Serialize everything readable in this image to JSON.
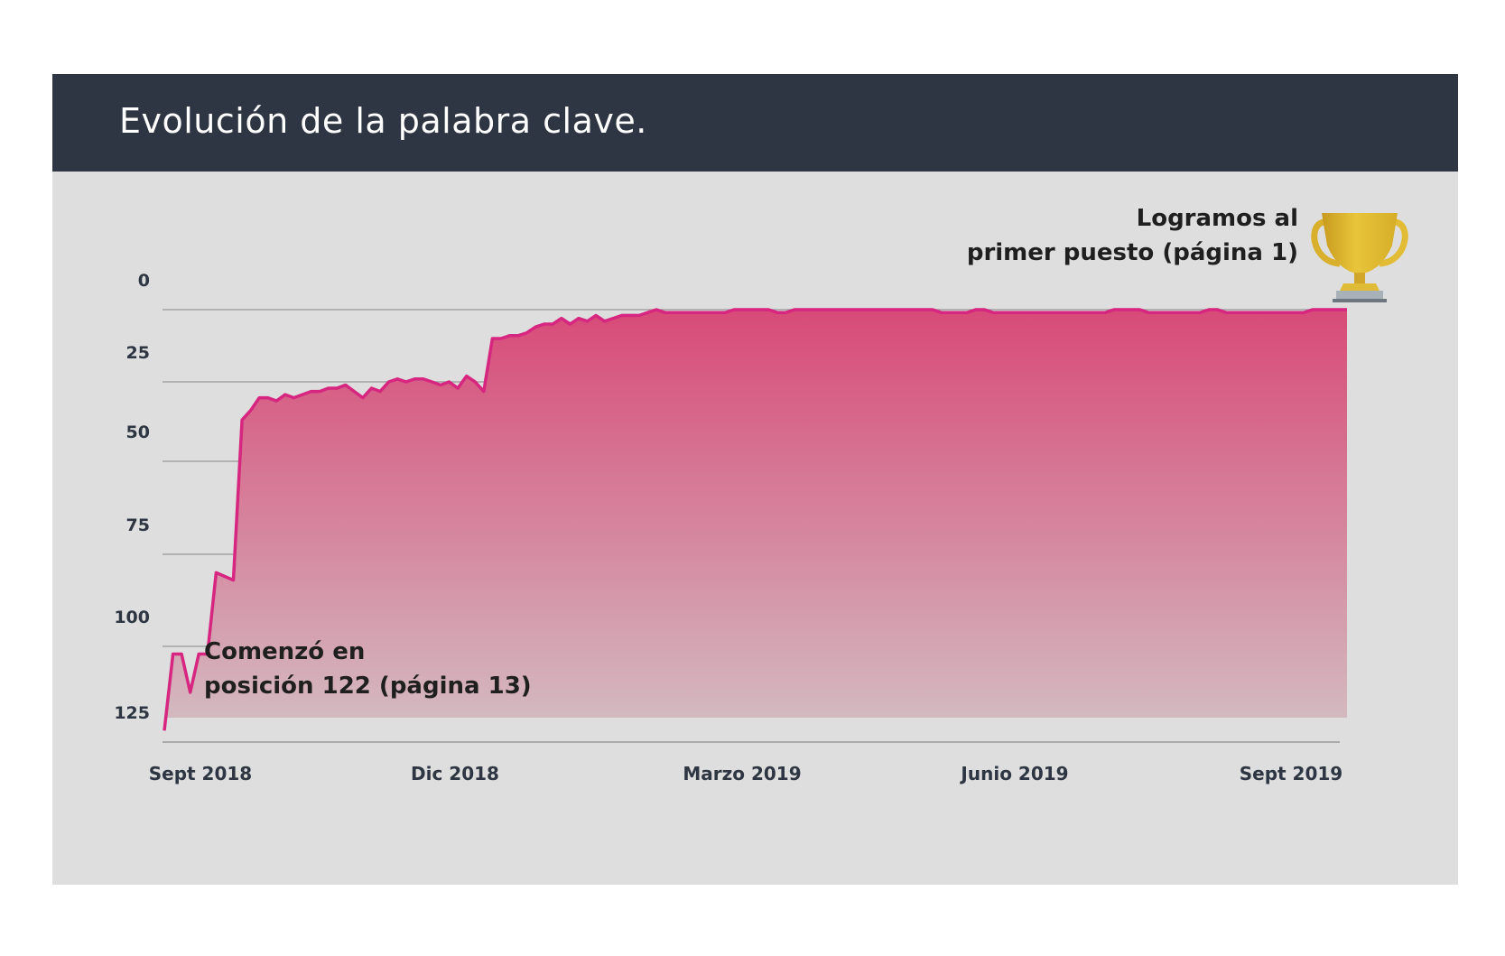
{
  "header": {
    "title": "Evolución de la palabra clave."
  },
  "chart_data": {
    "type": "area",
    "title": "Evolución de la palabra clave.",
    "xlabel": "",
    "ylabel": "",
    "y_inverted": true,
    "ylim": [
      0,
      125
    ],
    "y_ticks": [
      "0",
      "25",
      "50",
      "75",
      "100",
      "125"
    ],
    "y_tick_values": [
      0,
      25,
      50,
      75,
      100,
      125
    ],
    "x_ticks": [
      "Sept 2018",
      "Dic 2018",
      "Marzo 2019",
      "Junio  2019",
      "Sept 2019"
    ],
    "grid": true,
    "colors": {
      "line": "#d6267f",
      "fill_top": "#d84a78",
      "fill_bottom": "#d3bcc2"
    },
    "series": [
      {
        "values": [
          122,
          102,
          102,
          112,
          102,
          102,
          80,
          81,
          82,
          37,
          34,
          30,
          30,
          31,
          29,
          30,
          29,
          28,
          28,
          27,
          27,
          26,
          28,
          30,
          27,
          28,
          25,
          24,
          25,
          24,
          24,
          25,
          26,
          25,
          27,
          23,
          25,
          28,
          10,
          10,
          9,
          9,
          8,
          6,
          5,
          5,
          3,
          5,
          3,
          4,
          2,
          4,
          3,
          2,
          2,
          2,
          1,
          0,
          1,
          1,
          1,
          1,
          1,
          1,
          1,
          1,
          0,
          0,
          0,
          0,
          0,
          1,
          1,
          0,
          0,
          0,
          0,
          0,
          0,
          0,
          0,
          0,
          0,
          0,
          0,
          0,
          0,
          0,
          0,
          0,
          1,
          1,
          1,
          1,
          0,
          0,
          1,
          1,
          1,
          1,
          1,
          1,
          1,
          1,
          1,
          1,
          1,
          1,
          1,
          1,
          0,
          0,
          0,
          0,
          1,
          1,
          1,
          1,
          1,
          1,
          1,
          0,
          0,
          1,
          1,
          1,
          1,
          1,
          1,
          1,
          1,
          1,
          1,
          0,
          0,
          0,
          0,
          0
        ]
      }
    ],
    "annotations": [
      {
        "lines": [
          "Comenzó en",
          "posición 122 (página 13)"
        ]
      },
      {
        "lines": [
          "Logramos al",
          "primer puesto (página 1)"
        ]
      }
    ]
  },
  "icons": {
    "trophy": "trophy-icon"
  }
}
